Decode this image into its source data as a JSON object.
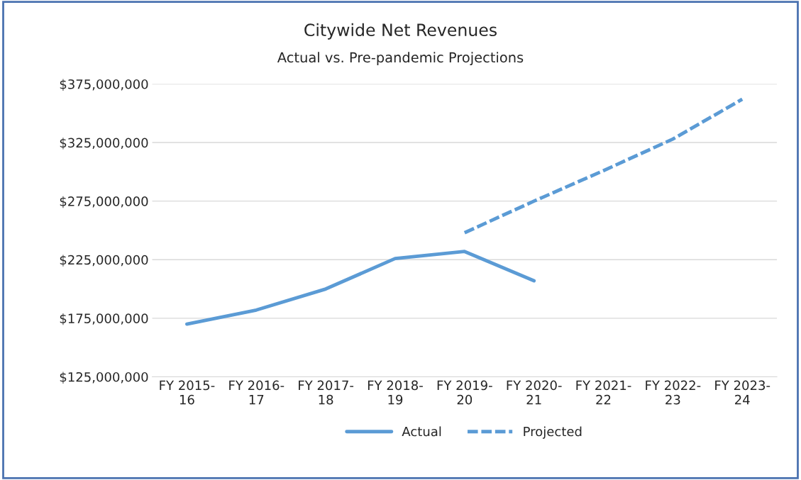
{
  "chart_data": {
    "type": "line",
    "title": "Citywide Net Revenues",
    "subtitle": "Actual vs. Pre-pandemic Projections",
    "categories": [
      "FY 2015-\n16",
      "FY 2016-\n17",
      "FY 2017-\n18",
      "FY 2018-\n19",
      "FY 2019-\n20",
      "FY 2020-\n21",
      "FY 2021-\n22",
      "FY 2022-\n23",
      "FY 2023-\n24"
    ],
    "series": [
      {
        "name": "Actual",
        "color": "#5b9bd5",
        "line_style": "solid",
        "values": [
          170000000,
          182000000,
          200000000,
          226000000,
          232000000,
          207000000,
          null,
          null,
          null
        ]
      },
      {
        "name": "Projected",
        "color": "#5b9bd5",
        "line_style": "dashed",
        "values": [
          null,
          null,
          null,
          null,
          248000000,
          275000000,
          301000000,
          328000000,
          362000000
        ]
      }
    ],
    "ylim": [
      125000000,
      375000000
    ],
    "yticks": [
      {
        "value": 125000000,
        "label": "$125,000,000"
      },
      {
        "value": 175000000,
        "label": "$175,000,000"
      },
      {
        "value": 225000000,
        "label": "$225,000,000"
      },
      {
        "value": 275000000,
        "label": "$275,000,000"
      },
      {
        "value": 325000000,
        "label": "$325,000,000"
      },
      {
        "value": 375000000,
        "label": "$375,000,000"
      }
    ],
    "grid": "y",
    "legend": "bottom",
    "marker": "none"
  }
}
